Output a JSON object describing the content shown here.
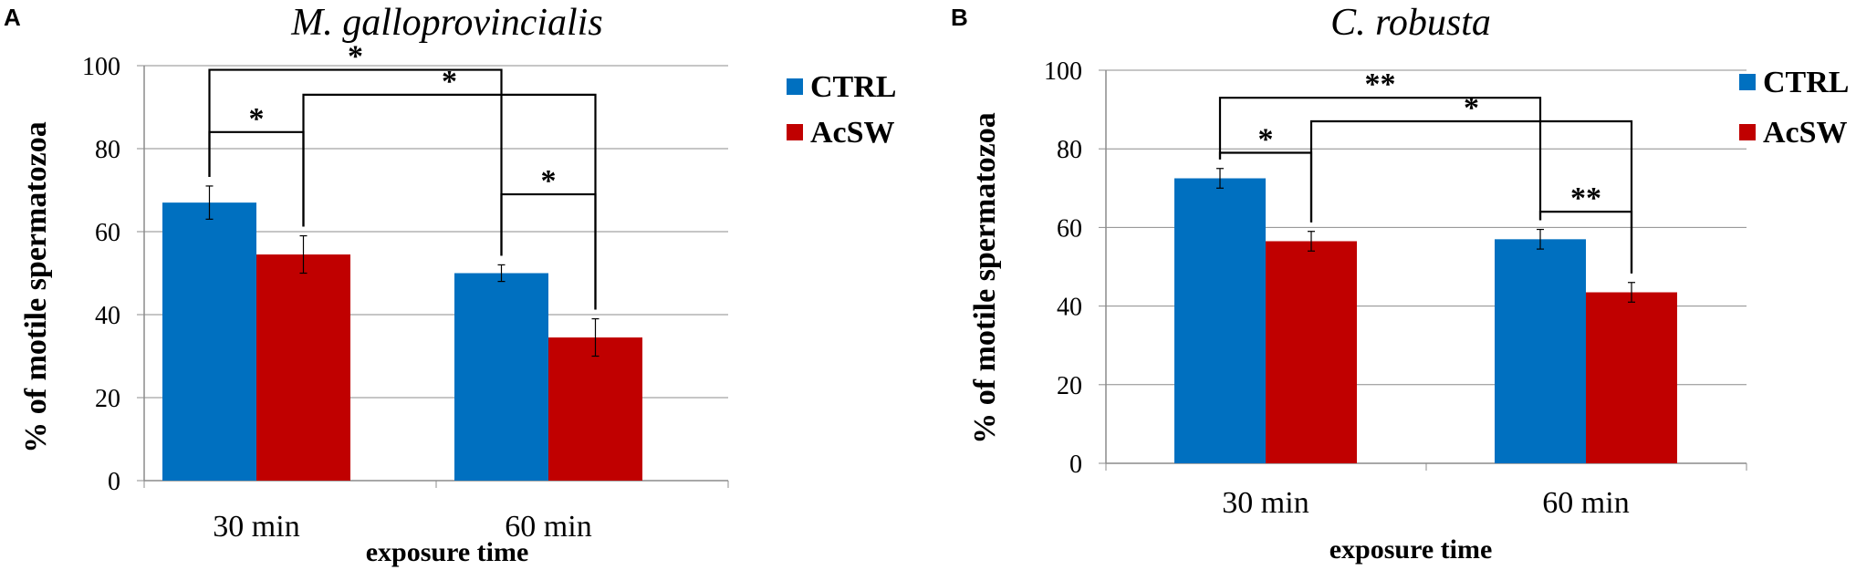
{
  "chart_data": [
    {
      "panel": "A",
      "type": "bar",
      "title": "M. galloprovincialis",
      "xlabel": "exposure time",
      "ylabel": "% of motile spermatozoa",
      "ylim": [
        0,
        100
      ],
      "yticks": [
        "0",
        "20",
        "40",
        "60",
        "80",
        "100"
      ],
      "grid": true,
      "legend_position": "top-right",
      "categories": [
        "30 min",
        "60 min"
      ],
      "series": [
        {
          "name": "CTRL",
          "color": "#0070c0",
          "values": [
            67,
            50
          ],
          "errors": [
            4,
            2
          ]
        },
        {
          "name": "AcSW",
          "color": "#c00000",
          "values": [
            54.5,
            34.5
          ],
          "errors": [
            4.5,
            4.5
          ]
        }
      ],
      "significance": [
        {
          "from": [
            0,
            0
          ],
          "to": [
            1,
            0
          ],
          "label": "*",
          "level": 99
        },
        {
          "from": [
            0,
            1
          ],
          "to": [
            1,
            1
          ],
          "label": "*",
          "level": 93
        },
        {
          "from": [
            0,
            0
          ],
          "to": [
            0,
            1
          ],
          "label": "*",
          "level": 84
        },
        {
          "from": [
            1,
            0
          ],
          "to": [
            1,
            1
          ],
          "label": "*",
          "level": 69
        }
      ]
    },
    {
      "panel": "B",
      "type": "bar",
      "title": "C. robusta",
      "xlabel": "exposure time",
      "ylabel": "% of motile spermatozoa",
      "ylim": [
        0,
        100
      ],
      "yticks": [
        "0",
        "20",
        "40",
        "60",
        "80",
        "100"
      ],
      "grid": true,
      "legend_position": "top-right",
      "categories": [
        "30 min",
        "60 min"
      ],
      "series": [
        {
          "name": "CTRL",
          "color": "#0070c0",
          "values": [
            72.5,
            57
          ],
          "errors": [
            2.5,
            2.5
          ]
        },
        {
          "name": "AcSW",
          "color": "#c00000",
          "values": [
            56.5,
            43.5
          ],
          "errors": [
            2.5,
            2.5
          ]
        }
      ],
      "significance": [
        {
          "from": [
            0,
            0
          ],
          "to": [
            1,
            0
          ],
          "label": "**",
          "level": 93
        },
        {
          "from": [
            0,
            1
          ],
          "to": [
            1,
            1
          ],
          "label": "*",
          "level": 87
        },
        {
          "from": [
            0,
            0
          ],
          "to": [
            0,
            1
          ],
          "label": "*",
          "level": 79
        },
        {
          "from": [
            1,
            0
          ],
          "to": [
            1,
            1
          ],
          "label": "**",
          "level": 64
        }
      ]
    }
  ]
}
